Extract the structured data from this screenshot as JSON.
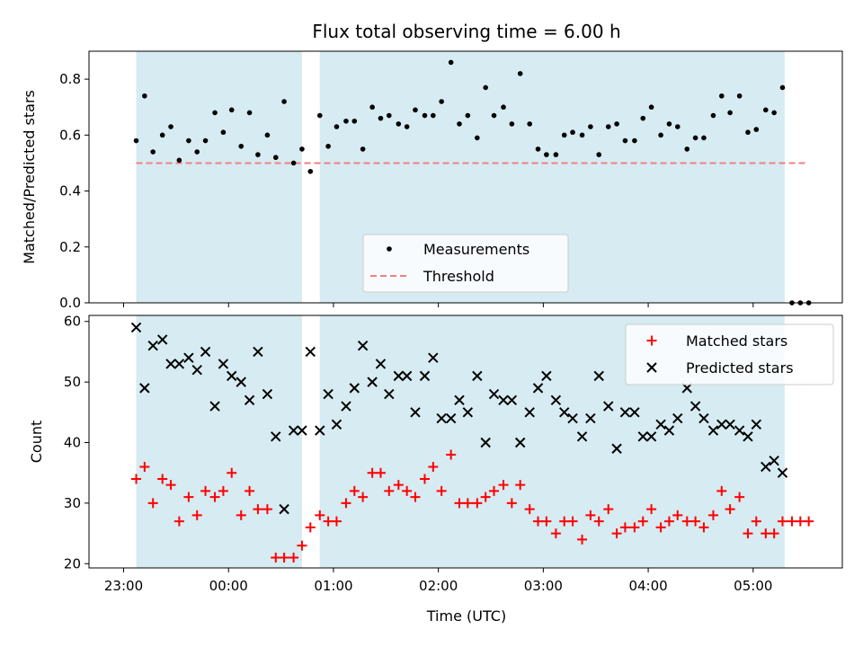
{
  "chart_data": [
    {
      "type": "scatter",
      "title": "Flux total observing time = 6.00 h",
      "xlabel": "",
      "ylabel": "Matched/Predicted stars",
      "ylim": [
        0,
        0.9
      ],
      "yticks": [
        "0.0",
        "0.2",
        "0.4",
        "0.6",
        "0.8"
      ],
      "x_unit": "hours since 23:00 UTC",
      "xlim": [
        -0.33,
        6.85
      ],
      "shaded_color": "#add8e6",
      "shaded_intervals": [
        [
          0.12,
          1.7
        ],
        [
          1.87,
          6.3
        ]
      ],
      "legend": {
        "position": "lower center",
        "entries": [
          "Measurements",
          "Threshold"
        ]
      },
      "threshold": {
        "name": "Threshold",
        "value": 0.5,
        "x_range": [
          0.12,
          6.5
        ],
        "color": "#f08080"
      },
      "series": [
        {
          "name": "Measurements",
          "color": "#000000",
          "x": [
            0.12,
            0.2,
            0.28,
            0.37,
            0.45,
            0.53,
            0.62,
            0.7,
            0.78,
            0.87,
            0.95,
            1.03,
            1.12,
            1.2,
            1.28,
            1.37,
            1.45,
            1.53,
            1.62,
            1.7,
            1.78,
            1.87,
            1.95,
            2.03,
            2.12,
            2.2,
            2.28,
            2.37,
            2.45,
            2.53,
            2.62,
            2.7,
            2.78,
            2.87,
            2.95,
            3.03,
            3.12,
            3.2,
            3.28,
            3.37,
            3.45,
            3.53,
            3.62,
            3.7,
            3.78,
            3.87,
            3.95,
            4.03,
            4.12,
            4.2,
            4.28,
            4.37,
            4.45,
            4.53,
            4.62,
            4.7,
            4.78,
            4.87,
            4.95,
            5.03,
            5.12,
            5.2,
            5.28,
            5.37,
            5.45,
            5.53,
            5.62,
            5.7,
            5.78,
            5.87,
            5.95,
            6.03,
            6.12,
            6.2,
            6.28,
            6.37,
            6.45,
            6.53
          ],
          "y": [
            0.58,
            0.74,
            0.54,
            0.6,
            0.63,
            0.51,
            0.58,
            0.54,
            0.58,
            0.68,
            0.61,
            0.69,
            0.56,
            0.68,
            0.53,
            0.6,
            0.52,
            0.72,
            0.5,
            0.55,
            0.47,
            0.67,
            0.56,
            0.63,
            0.65,
            0.65,
            0.55,
            0.7,
            0.66,
            0.67,
            0.64,
            0.63,
            0.69,
            0.67,
            0.67,
            0.72,
            0.86,
            0.64,
            0.67,
            0.59,
            0.77,
            0.67,
            0.7,
            0.64,
            0.82,
            0.64,
            0.55,
            0.53,
            0.53,
            0.6,
            0.61,
            0.6,
            0.63,
            0.53,
            0.63,
            0.64,
            0.58,
            0.58,
            0.66,
            0.7,
            0.6,
            0.64,
            0.63,
            0.55,
            0.59,
            0.59,
            0.67,
            0.74,
            0.68,
            0.74,
            0.61,
            0.62,
            0.69,
            0.68,
            0.77,
            0.0,
            0.0,
            0.0
          ]
        }
      ]
    },
    {
      "type": "scatter",
      "xlabel": "Time (UTC)",
      "ylabel": "Count",
      "ylim": [
        19.3,
        61
      ],
      "yticks": [
        "20",
        "30",
        "40",
        "50",
        "60"
      ],
      "x_unit": "hours since 23:00 UTC",
      "xlim": [
        -0.33,
        6.85
      ],
      "xticks": [
        "23:00",
        "00:00",
        "01:00",
        "02:00",
        "03:00",
        "04:00",
        "05:00"
      ],
      "shaded_color": "#add8e6",
      "shaded_intervals": [
        [
          0.12,
          1.7
        ],
        [
          1.87,
          6.3
        ]
      ],
      "legend": {
        "position": "upper right",
        "entries": [
          "Matched stars",
          "Predicted stars"
        ]
      },
      "series": [
        {
          "name": "Matched stars",
          "marker": "plus",
          "color": "#ff0000",
          "x": [
            0.12,
            0.2,
            0.28,
            0.37,
            0.45,
            0.53,
            0.62,
            0.7,
            0.78,
            0.87,
            0.95,
            1.03,
            1.12,
            1.2,
            1.28,
            1.37,
            1.45,
            1.53,
            1.62,
            1.7,
            1.78,
            1.87,
            1.95,
            2.03,
            2.12,
            2.2,
            2.28,
            2.37,
            2.45,
            2.53,
            2.62,
            2.7,
            2.78,
            2.87,
            2.95,
            3.03,
            3.12,
            3.2,
            3.28,
            3.37,
            3.45,
            3.53,
            3.62,
            3.7,
            3.78,
            3.87,
            3.95,
            4.03,
            4.12,
            4.2,
            4.28,
            4.37,
            4.45,
            4.53,
            4.62,
            4.7,
            4.78,
            4.87,
            4.95,
            5.03,
            5.12,
            5.2,
            5.28,
            5.37,
            5.45,
            5.53,
            5.62,
            5.7,
            5.78,
            5.87,
            5.95,
            6.03,
            6.12,
            6.2,
            6.28,
            6.37,
            6.45,
            6.53
          ],
          "y": [
            34,
            36,
            30,
            34,
            33,
            27,
            31,
            28,
            32,
            31,
            32,
            35,
            28,
            32,
            29,
            29,
            21,
            21,
            21,
            23,
            26,
            28,
            27,
            27,
            30,
            32,
            31,
            35,
            35,
            32,
            33,
            32,
            31,
            34,
            36,
            32,
            38,
            30,
            30,
            30,
            31,
            32,
            33,
            30,
            33,
            29,
            27,
            27,
            25,
            27,
            27,
            24,
            28,
            27,
            29,
            25,
            26,
            26,
            27,
            29,
            26,
            27,
            28,
            27,
            27,
            26,
            28,
            32,
            29,
            31,
            25,
            27,
            25,
            25,
            27,
            27,
            27,
            27
          ]
        },
        {
          "name": "Predicted stars",
          "marker": "x",
          "color": "#000000",
          "x": [
            0.12,
            0.2,
            0.28,
            0.37,
            0.45,
            0.53,
            0.62,
            0.7,
            0.78,
            0.87,
            0.95,
            1.03,
            1.12,
            1.2,
            1.28,
            1.37,
            1.45,
            1.53,
            1.62,
            1.7,
            1.78,
            1.87,
            1.95,
            2.03,
            2.12,
            2.2,
            2.28,
            2.37,
            2.45,
            2.53,
            2.62,
            2.7,
            2.78,
            2.87,
            2.95,
            3.03,
            3.12,
            3.2,
            3.28,
            3.37,
            3.45,
            3.53,
            3.62,
            3.7,
            3.78,
            3.87,
            3.95,
            4.03,
            4.12,
            4.2,
            4.28,
            4.37,
            4.45,
            4.53,
            4.62,
            4.7,
            4.78,
            4.87,
            4.95,
            5.03,
            5.12,
            5.2,
            5.28,
            5.37,
            5.45,
            5.53,
            5.62,
            5.7,
            5.78,
            5.87,
            5.95,
            6.03,
            6.12,
            6.2,
            6.28
          ],
          "y": [
            59,
            49,
            56,
            57,
            53,
            53,
            54,
            52,
            55,
            46,
            53,
            51,
            50,
            47,
            55,
            48,
            41,
            29,
            42,
            42,
            55,
            42,
            48,
            43,
            46,
            49,
            56,
            50,
            53,
            48,
            51,
            51,
            45,
            51,
            54,
            44,
            44,
            47,
            45,
            51,
            40,
            48,
            47,
            47,
            40,
            45,
            49,
            51,
            47,
            45,
            44,
            41,
            44,
            51,
            46,
            39,
            45,
            45,
            41,
            41,
            43,
            42,
            44,
            49,
            46,
            44,
            42,
            43,
            43,
            42,
            41,
            43,
            36,
            37,
            35
          ]
        }
      ]
    }
  ]
}
